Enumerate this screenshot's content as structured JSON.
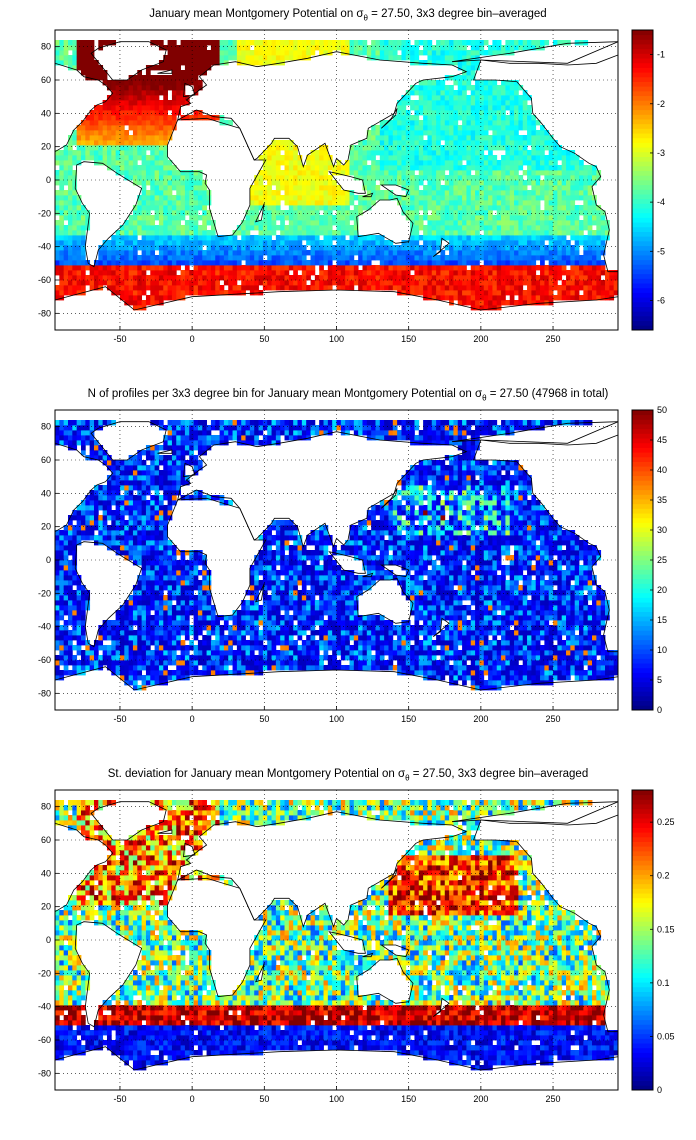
{
  "colors": {
    "jet_low": "#00008f",
    "jet_mid": "#80ff80",
    "jet_high": "#800000",
    "land": "#ffffff",
    "coast": "#000000",
    "grid": "#000000"
  },
  "chart_data": [
    {
      "type": "heatmap",
      "title_pre": "January mean Montgomery Potential on σ",
      "title_sub": "θ",
      "title_post": " = 27.50, 3x3 degree bin–averaged",
      "xlim": [
        -95,
        295
      ],
      "ylim": [
        -90,
        90
      ],
      "xticks": [
        -50,
        0,
        50,
        100,
        150,
        200,
        250
      ],
      "yticks": [
        -80,
        -60,
        -40,
        -20,
        0,
        20,
        40,
        60,
        80
      ],
      "grid": true,
      "colorbar": {
        "min": -6.6,
        "max": -0.5,
        "ticks": [
          -6,
          -5,
          -4,
          -3,
          -2,
          -1
        ]
      }
    },
    {
      "type": "heatmap",
      "title_pre": "N of profiles per 3x3 degree bin for January mean Montgomery Potential on σ",
      "title_sub": "θ",
      "title_post": " = 27.50 (47968 in total)",
      "xlim": [
        -95,
        295
      ],
      "ylim": [
        -90,
        90
      ],
      "xticks": [
        -50,
        0,
        50,
        100,
        150,
        200,
        250
      ],
      "yticks": [
        -80,
        -60,
        -40,
        -20,
        0,
        20,
        40,
        60,
        80
      ],
      "grid": true,
      "colorbar": {
        "min": 0,
        "max": 50,
        "ticks": [
          0,
          5,
          10,
          15,
          20,
          25,
          30,
          35,
          40,
          45,
          50
        ]
      }
    },
    {
      "type": "heatmap",
      "title_pre": "St. deviation for January mean Montgomery Potential on σ",
      "title_sub": "θ",
      "title_post": " = 27.50, 3x3 degree bin–averaged",
      "xlim": [
        -95,
        295
      ],
      "ylim": [
        -90,
        90
      ],
      "xticks": [
        -50,
        0,
        50,
        100,
        150,
        200,
        250
      ],
      "yticks": [
        -80,
        -60,
        -40,
        -20,
        0,
        20,
        40,
        60,
        80
      ],
      "grid": true,
      "colorbar": {
        "min": 0,
        "max": 0.28,
        "ticks": [
          0,
          0.05,
          0.1,
          0.15,
          0.2,
          0.25
        ]
      }
    }
  ]
}
